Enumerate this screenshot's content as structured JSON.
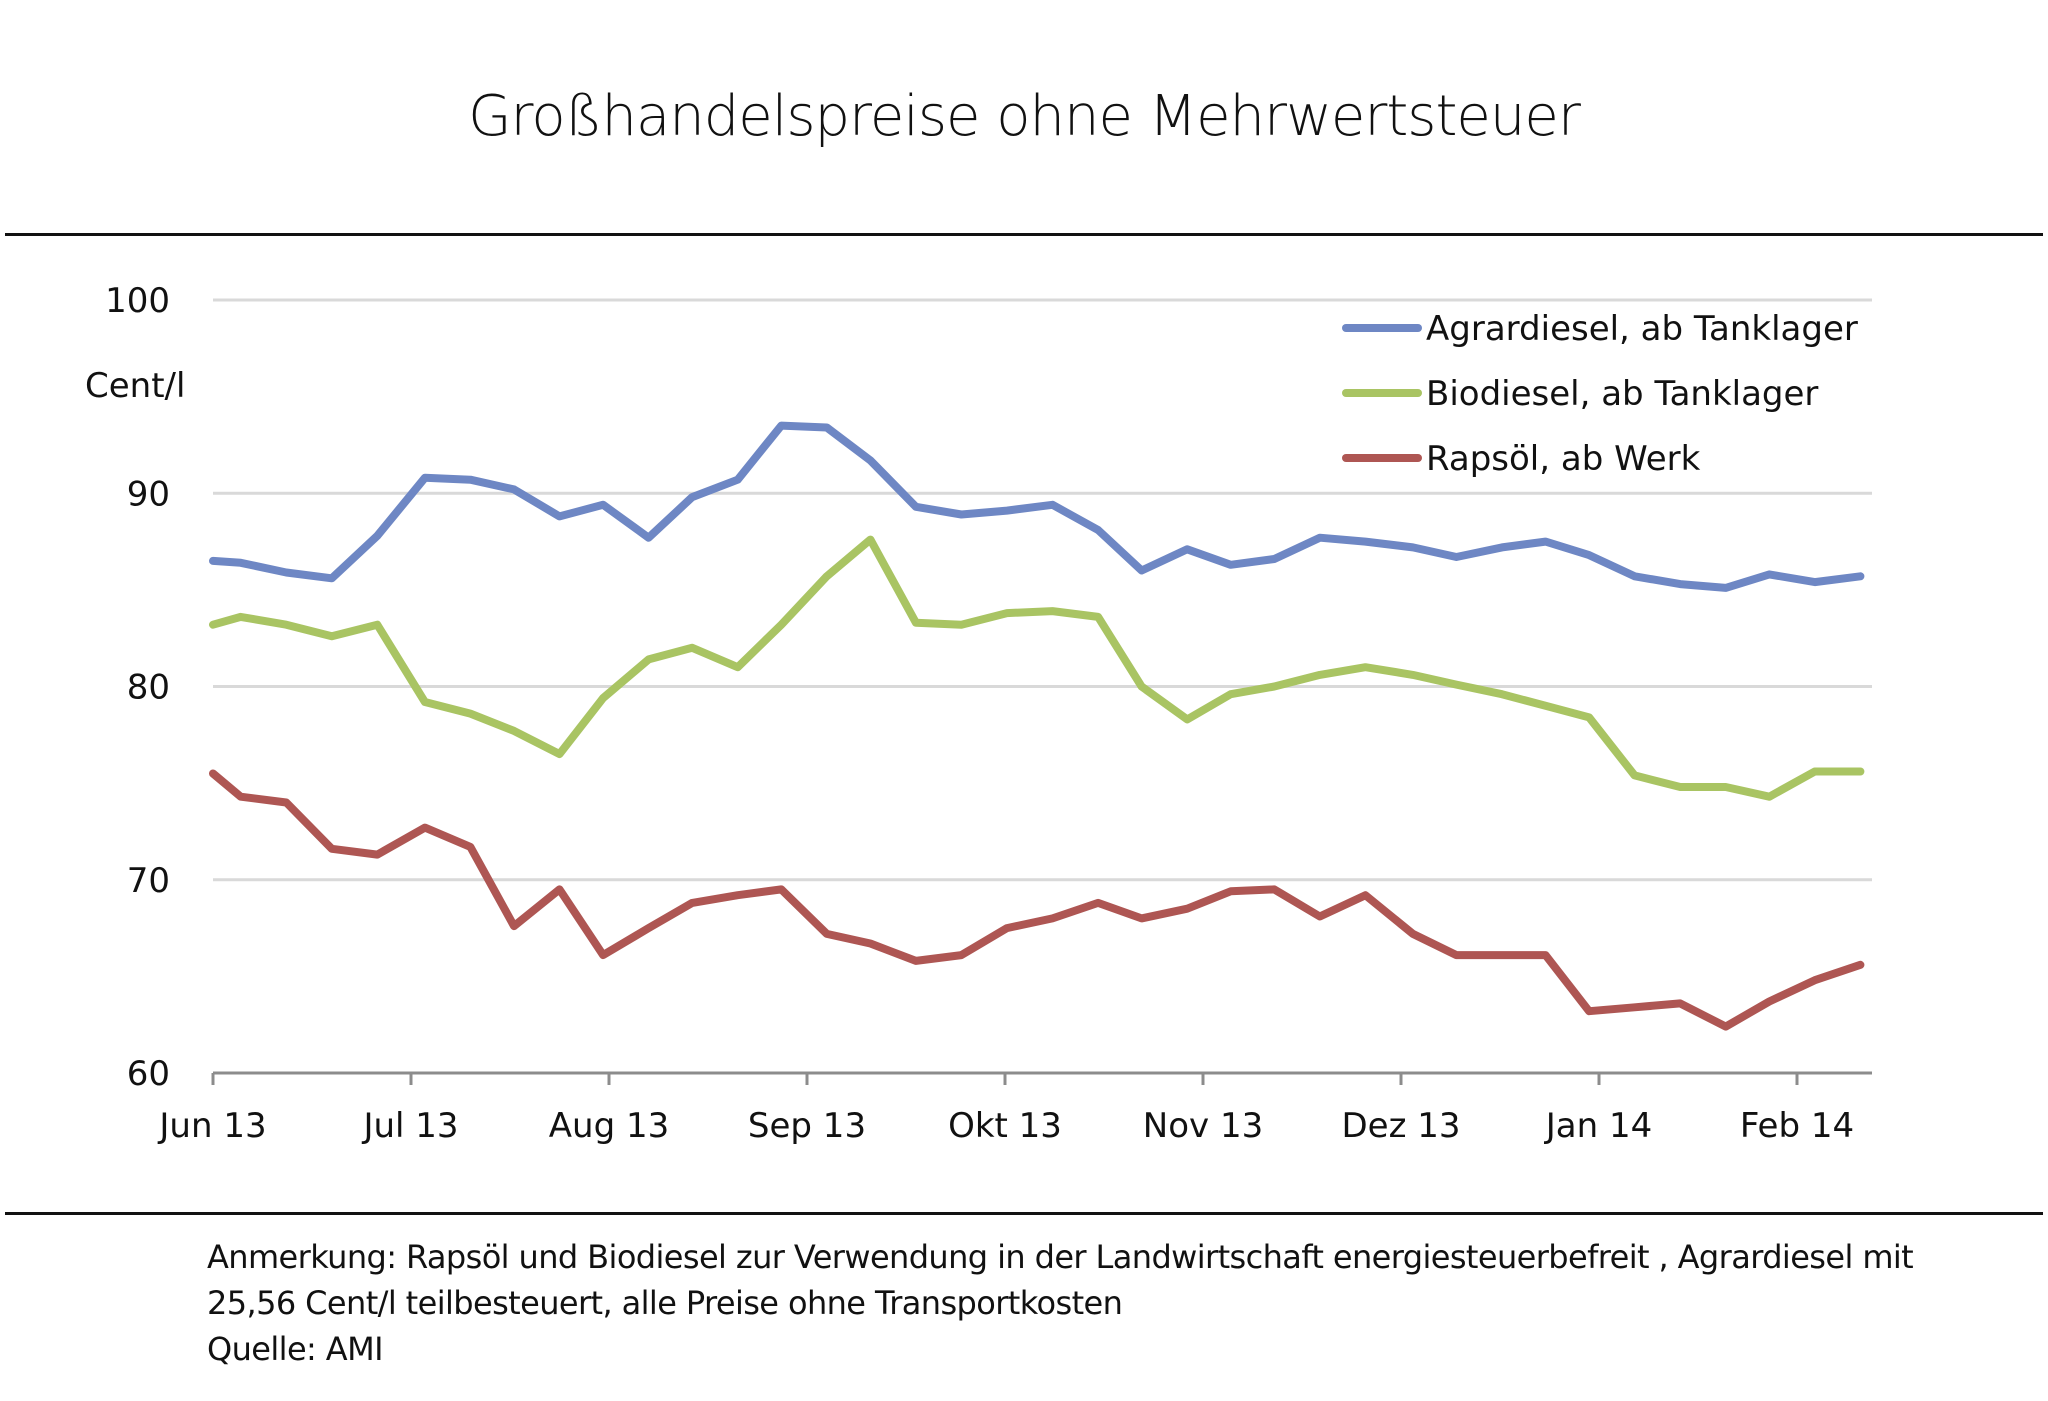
{
  "chart_data": {
    "type": "line",
    "title": "Großhandelspreise ohne Mehrwertsteuer",
    "xlabel": "",
    "ylabel": "Cent/l",
    "ylim": [
      60,
      100
    ],
    "yticks": [
      60,
      70,
      80,
      90,
      100
    ],
    "grid": true,
    "legend_position": "top-right",
    "x_tick_labels": [
      "Jun 13",
      "Jul 13",
      "Aug 13",
      "Sep 13",
      "Okt 13",
      "Nov 13",
      "Dez 13",
      "Jan 14",
      "Feb 14"
    ],
    "x_tick_positions_months": [
      0,
      1,
      2,
      3,
      4,
      5,
      6,
      7,
      8
    ],
    "x_months": [
      0.0,
      0.14,
      0.37,
      0.6,
      0.83,
      1.07,
      1.3,
      1.52,
      1.75,
      1.97,
      2.2,
      2.42,
      2.65,
      2.87,
      3.1,
      3.32,
      3.55,
      3.78,
      4.01,
      4.24,
      4.47,
      4.69,
      4.92,
      5.14,
      5.36,
      5.59,
      5.82,
      6.06,
      6.28,
      6.51,
      6.73,
      6.95,
      7.18,
      7.41,
      7.64,
      7.86,
      8.09,
      8.32
    ],
    "series": [
      {
        "name": "Agrardiesel, ab Tanklager",
        "color": "#6E87C4",
        "values": [
          86.5,
          86.4,
          85.9,
          85.6,
          87.8,
          90.8,
          90.7,
          90.2,
          88.8,
          89.4,
          87.7,
          89.8,
          90.7,
          93.5,
          93.4,
          91.7,
          89.3,
          88.9,
          89.1,
          89.4,
          88.1,
          86.0,
          87.1,
          86.3,
          86.6,
          87.7,
          87.5,
          87.2,
          86.7,
          87.2,
          87.5,
          86.8,
          85.7,
          85.3,
          85.1,
          85.8,
          85.4,
          85.7
        ]
      },
      {
        "name": "Biodiesel, ab Tanklager",
        "color": "#A9C463",
        "values": [
          83.2,
          83.6,
          83.2,
          82.6,
          83.2,
          79.2,
          78.6,
          77.7,
          76.5,
          79.4,
          81.4,
          82.0,
          81.0,
          83.2,
          85.7,
          87.6,
          83.3,
          83.2,
          83.8,
          83.9,
          83.6,
          80.0,
          78.3,
          79.6,
          80.0,
          80.6,
          81.0,
          80.6,
          80.1,
          79.6,
          79.0,
          78.4,
          75.4,
          74.8,
          74.8,
          74.3,
          75.6,
          75.6
        ]
      },
      {
        "name": "Rapsöl, ab Werk",
        "color": "#AE5653",
        "values": [
          75.5,
          74.3,
          74.0,
          71.6,
          71.3,
          72.7,
          71.7,
          67.6,
          69.5,
          66.1,
          67.5,
          68.8,
          69.2,
          69.5,
          67.2,
          66.7,
          65.8,
          66.1,
          67.5,
          68.0,
          68.8,
          68.0,
          68.5,
          69.4,
          69.5,
          68.1,
          69.2,
          67.2,
          66.1,
          66.1,
          66.1,
          63.2,
          63.4,
          63.6,
          62.4,
          63.7,
          64.8,
          65.6
        ]
      }
    ]
  },
  "footer": {
    "note_line1": "Anmerkung: Rapsöl und Biodiesel zur Verwendung in der Landwirtschaft energiesteuerbefreit , Agrardiesel mit",
    "note_line2": "25,56 Cent/l teilbesteuert, alle Preise ohne Transportkosten",
    "source": "Quelle: AMI"
  }
}
